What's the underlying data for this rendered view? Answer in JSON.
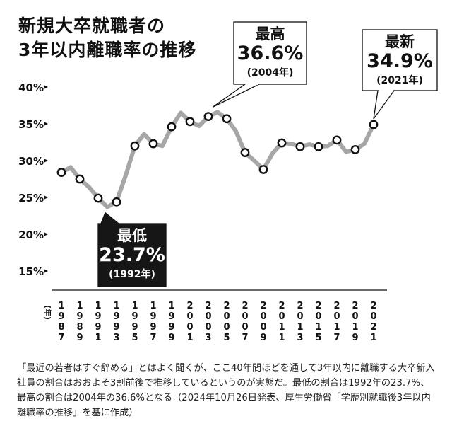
{
  "title_lines": [
    "新規大卒就職者の",
    "3年以内離職率の推移"
  ],
  "chart_data": {
    "type": "line",
    "title": "新規大卒就職者の3年以内離職率の推移",
    "xlabel": "(年)",
    "ylabel": "",
    "ylim": [
      13,
      42
    ],
    "yticks": [
      15,
      20,
      25,
      30,
      35,
      40
    ],
    "ytick_labels": [
      "15%",
      "20%",
      "25%",
      "30%",
      "35%",
      "40%"
    ],
    "x_tick_labels": [
      "1987",
      "1989",
      "1991",
      "1993",
      "1995",
      "1997",
      "1999",
      "2001",
      "2003",
      "2005",
      "2007",
      "2009",
      "2011",
      "2013",
      "2015",
      "2017",
      "2019",
      "2021"
    ],
    "series": [
      {
        "x": [
          1987,
          1988,
          1989,
          1990,
          1991,
          1992,
          1993,
          1994,
          1995,
          1996,
          1997,
          1998,
          1999,
          2000,
          2001,
          2002,
          2003,
          2004,
          2005,
          2006,
          2007,
          2008,
          2009,
          2010,
          2011,
          2012,
          2013,
          2014,
          2015,
          2016,
          2017,
          2018,
          2019,
          2020,
          2021
        ],
        "values": [
          28.4,
          29.1,
          27.5,
          26.4,
          24.9,
          23.7,
          24.4,
          28.0,
          32.0,
          33.6,
          32.3,
          32.0,
          34.6,
          36.5,
          35.3,
          34.7,
          36.0,
          36.6,
          35.7,
          34.0,
          31.1,
          30.0,
          28.8,
          31.0,
          32.4,
          32.3,
          31.9,
          32.2,
          31.9,
          32.0,
          32.8,
          31.2,
          31.5,
          32.3,
          34.9
        ],
        "marked_x": [
          1987,
          1989,
          1991,
          1993,
          1995,
          1997,
          1999,
          2001,
          2003,
          2005,
          2007,
          2009,
          2011,
          2013,
          2015,
          2017,
          2019,
          2021
        ]
      }
    ],
    "annotations": [
      {
        "id": "max",
        "year": 2004,
        "heading": "最高",
        "value_text": "36.6%",
        "year_text": "(2004年)",
        "box_color": "#ffffff",
        "text_color": "#111111"
      },
      {
        "id": "min",
        "year": 1992,
        "heading": "最低",
        "value_text": "23.7%",
        "year_text": "(1992年)",
        "box_color": "#161616",
        "text_color": "#ffffff"
      },
      {
        "id": "latest",
        "year": 2021,
        "heading": "最新",
        "value_text": "34.9%",
        "year_text": "(2021年)",
        "box_color": "#ffffff",
        "text_color": "#111111"
      }
    ],
    "colors": {
      "line": "#a6a6a6",
      "marker_fill": "#ffffff",
      "marker_stroke": "#111111",
      "axis": "#111111"
    }
  },
  "caption": "「最近の若者はすぐ辞める」とはよく聞くが、ここ40年間ほどを通して3年以内に離職する大卒新入社員の割合はおおよそ3割前後で推移しているというのが実態だ。最低の割合は1992年の23.7%、最高の割合は2004年の36.6%となる（2024年10月26日発表、厚生労働省「学歴別就職後3年以内離職率の推移」を基に作成）"
}
